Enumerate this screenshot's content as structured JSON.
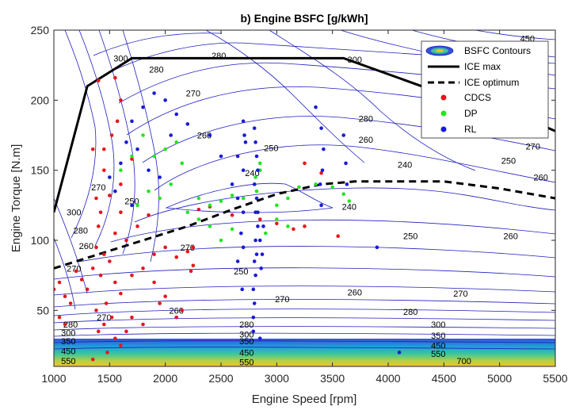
{
  "chart_data": {
    "type": "scatter",
    "title": "b) Engine BSFC [g/kWh]",
    "xlabel": "Engine Speed [rpm]",
    "ylabel": "Engine Torque [N.m]",
    "xlim": [
      1000,
      5500
    ],
    "ylim": [
      10,
      250
    ],
    "xticks": [
      1000,
      1500,
      2000,
      2500,
      3000,
      3500,
      4000,
      4500,
      5000,
      5500
    ],
    "yticks": [
      50,
      100,
      150,
      200,
      250
    ],
    "grid": false,
    "legend_position": "top-right",
    "legend": {
      "contours": "BSFC Contours",
      "ice_max": "ICE max",
      "ice_optimum": "ICE optimum",
      "cdcs": "CDCS",
      "dp": "DP",
      "rl": "RL"
    },
    "colors": {
      "contour": "#1f1fbf",
      "ice_max": "#000000",
      "ice_optimum": "#000000",
      "cdcs": "#e8141e",
      "dp": "#22e622",
      "rl": "#1a1ad6"
    },
    "ice_max": {
      "x": [
        1000,
        1300,
        1700,
        3600,
        4300,
        5000,
        5500
      ],
      "y": [
        120,
        210,
        230,
        230,
        210,
        195,
        178
      ]
    },
    "ice_optimum": {
      "x": [
        1000,
        1400,
        1800,
        2200,
        2600,
        3000,
        3400,
        3700,
        4000,
        4500,
        5000,
        5500
      ],
      "y": [
        80,
        90,
        100,
        110,
        122,
        133,
        140,
        142,
        142,
        142,
        137,
        130
      ]
    },
    "contour_labels": [
      {
        "text": "300",
        "x": 1600,
        "y": 230
      },
      {
        "text": "280",
        "x": 1920,
        "y": 222
      },
      {
        "text": "280",
        "x": 2480,
        "y": 232
      },
      {
        "text": "300",
        "x": 3700,
        "y": 229
      },
      {
        "text": "270",
        "x": 2250,
        "y": 205
      },
      {
        "text": "280",
        "x": 3800,
        "y": 187
      },
      {
        "text": "260",
        "x": 3800,
        "y": 172
      },
      {
        "text": "260",
        "x": 2350,
        "y": 175
      },
      {
        "text": "250",
        "x": 2950,
        "y": 166
      },
      {
        "text": "240",
        "x": 2780,
        "y": 148
      },
      {
        "text": "240",
        "x": 4150,
        "y": 154
      },
      {
        "text": "240",
        "x": 3650,
        "y": 124
      },
      {
        "text": "250",
        "x": 4200,
        "y": 103
      },
      {
        "text": "260",
        "x": 5100,
        "y": 103
      },
      {
        "text": "250",
        "x": 5080,
        "y": 157
      },
      {
        "text": "270",
        "x": 5300,
        "y": 167
      },
      {
        "text": "260",
        "x": 5370,
        "y": 145
      },
      {
        "text": "260",
        "x": 3700,
        "y": 63
      },
      {
        "text": "270",
        "x": 4650,
        "y": 62
      },
      {
        "text": "280",
        "x": 4200,
        "y": 49
      },
      {
        "text": "300",
        "x": 4450,
        "y": 40
      },
      {
        "text": "350",
        "x": 4450,
        "y": 32
      },
      {
        "text": "450",
        "x": 4450,
        "y": 25
      },
      {
        "text": "550",
        "x": 4450,
        "y": 19
      },
      {
        "text": "700",
        "x": 4680,
        "y": 14
      },
      {
        "text": "450",
        "x": 5250,
        "y": 244
      },
      {
        "text": "270",
        "x": 1180,
        "y": 80
      },
      {
        "text": "280",
        "x": 1240,
        "y": 107
      },
      {
        "text": "300",
        "x": 1180,
        "y": 120
      },
      {
        "text": "270",
        "x": 1400,
        "y": 138
      },
      {
        "text": "250",
        "x": 1700,
        "y": 128
      },
      {
        "text": "260",
        "x": 2100,
        "y": 50
      },
      {
        "text": "270",
        "x": 2200,
        "y": 95
      },
      {
        "text": "270",
        "x": 3050,
        "y": 58
      },
      {
        "text": "260",
        "x": 1290,
        "y": 96
      },
      {
        "text": "250",
        "x": 2680,
        "y": 78
      },
      {
        "text": "280",
        "x": 1150,
        "y": 40
      },
      {
        "text": "300",
        "x": 1130,
        "y": 34
      },
      {
        "text": "350",
        "x": 1130,
        "y": 28
      },
      {
        "text": "450",
        "x": 1130,
        "y": 21
      },
      {
        "text": "550",
        "x": 1130,
        "y": 14
      },
      {
        "text": "270",
        "x": 1450,
        "y": 45
      },
      {
        "text": "280",
        "x": 2730,
        "y": 40
      },
      {
        "text": "300",
        "x": 2730,
        "y": 33
      },
      {
        "text": "350",
        "x": 2730,
        "y": 28
      },
      {
        "text": "450",
        "x": 2730,
        "y": 20
      },
      {
        "text": "550",
        "x": 2730,
        "y": 13
      }
    ],
    "cdcs": [
      [
        1400,
        214
      ],
      [
        1550,
        216
      ],
      [
        1350,
        165
      ],
      [
        1700,
        158
      ],
      [
        1450,
        150
      ],
      [
        1500,
        132
      ],
      [
        1600,
        120
      ],
      [
        1400,
        110
      ],
      [
        1380,
        95
      ],
      [
        1450,
        90
      ],
      [
        1500,
        85
      ],
      [
        1350,
        80
      ],
      [
        1420,
        75
      ],
      [
        1550,
        70
      ],
      [
        1600,
        62
      ],
      [
        1470,
        55
      ],
      [
        1380,
        50
      ],
      [
        1520,
        45
      ],
      [
        1450,
        40
      ],
      [
        1400,
        35
      ],
      [
        1550,
        30
      ],
      [
        1600,
        25
      ],
      [
        1480,
        20
      ],
      [
        1350,
        15
      ],
      [
        1300,
        65
      ],
      [
        1250,
        72
      ],
      [
        1200,
        78
      ],
      [
        1700,
        75
      ],
      [
        1800,
        80
      ],
      [
        1900,
        90
      ],
      [
        2000,
        95
      ],
      [
        2100,
        88
      ],
      [
        2200,
        92
      ],
      [
        2250,
        95
      ],
      [
        2250,
        82
      ],
      [
        2230,
        78
      ],
      [
        1900,
        70
      ],
      [
        2000,
        60
      ],
      [
        1950,
        55
      ],
      [
        2100,
        45
      ],
      [
        2150,
        50
      ],
      [
        1700,
        45
      ],
      [
        1800,
        40
      ],
      [
        1650,
        35
      ],
      [
        1050,
        70
      ],
      [
        1000,
        65
      ],
      [
        1100,
        60
      ],
      [
        1150,
        55
      ],
      [
        1050,
        45
      ],
      [
        1100,
        40
      ],
      [
        1750,
        110
      ],
      [
        1850,
        118
      ],
      [
        2300,
        122
      ],
      [
        2400,
        124
      ],
      [
        2600,
        118
      ],
      [
        2850,
        115
      ],
      [
        3000,
        112
      ],
      [
        3150,
        108
      ],
      [
        3250,
        110
      ],
      [
        3550,
        103
      ],
      [
        3400,
        148
      ],
      [
        3250,
        155
      ],
      [
        1450,
        165
      ],
      [
        1520,
        175
      ],
      [
        1570,
        185
      ],
      [
        1600,
        200
      ],
      [
        1420,
        120
      ],
      [
        1380,
        130
      ],
      [
        1600,
        140
      ],
      [
        1650,
        100
      ],
      [
        1550,
        105
      ]
    ],
    "dp": [
      [
        1800,
        175
      ],
      [
        1900,
        160
      ],
      [
        2000,
        165
      ],
      [
        2100,
        170
      ],
      [
        2150,
        155
      ],
      [
        2050,
        140
      ],
      [
        1950,
        130
      ],
      [
        1850,
        135
      ],
      [
        1750,
        125
      ],
      [
        2300,
        115
      ],
      [
        2400,
        110
      ],
      [
        2500,
        100
      ],
      [
        2600,
        108
      ],
      [
        2200,
        120
      ],
      [
        2300,
        130
      ],
      [
        2400,
        125
      ],
      [
        2500,
        128
      ],
      [
        2600,
        132
      ],
      [
        2700,
        130
      ],
      [
        2800,
        140
      ],
      [
        2850,
        150
      ],
      [
        2850,
        155
      ],
      [
        2820,
        135
      ],
      [
        2830,
        120
      ],
      [
        2810,
        145
      ],
      [
        3000,
        125
      ],
      [
        3100,
        130
      ],
      [
        3200,
        138
      ],
      [
        3350,
        140
      ],
      [
        3500,
        138
      ],
      [
        3600,
        133
      ],
      [
        3650,
        128
      ],
      [
        3000,
        115
      ],
      [
        3100,
        110
      ],
      [
        2900,
        105
      ],
      [
        1600,
        150
      ],
      [
        1700,
        160
      ]
    ],
    "rl": [
      [
        1800,
        195
      ],
      [
        1900,
        205
      ],
      [
        2000,
        200
      ],
      [
        1700,
        185
      ],
      [
        1650,
        170
      ],
      [
        1750,
        165
      ],
      [
        1850,
        150
      ],
      [
        1950,
        145
      ],
      [
        2050,
        175
      ],
      [
        2100,
        190
      ],
      [
        2200,
        183
      ],
      [
        1600,
        155
      ],
      [
        1500,
        145
      ],
      [
        1550,
        135
      ],
      [
        1700,
        125
      ],
      [
        2400,
        175
      ],
      [
        2500,
        160
      ],
      [
        2600,
        140
      ],
      [
        2650,
        130
      ],
      [
        2700,
        120
      ],
      [
        2700,
        185
      ],
      [
        2710,
        175
      ],
      [
        2720,
        170
      ],
      [
        2800,
        180
      ],
      [
        2810,
        170
      ],
      [
        2820,
        160
      ],
      [
        2830,
        150
      ],
      [
        2800,
        140
      ],
      [
        2820,
        130
      ],
      [
        2810,
        120
      ],
      [
        2830,
        110
      ],
      [
        2810,
        100
      ],
      [
        2820,
        90
      ],
      [
        2800,
        85
      ],
      [
        2810,
        75
      ],
      [
        2790,
        65
      ],
      [
        2800,
        55
      ],
      [
        2790,
        45
      ],
      [
        2790,
        35
      ],
      [
        2850,
        30
      ],
      [
        2830,
        120
      ],
      [
        2850,
        100
      ],
      [
        2870,
        90
      ],
      [
        2880,
        110
      ],
      [
        2860,
        80
      ],
      [
        2680,
        105
      ],
      [
        2700,
        95
      ],
      [
        2650,
        85
      ],
      [
        2690,
        65
      ],
      [
        3350,
        195
      ],
      [
        3400,
        180
      ],
      [
        3420,
        165
      ],
      [
        3410,
        150
      ],
      [
        3390,
        140
      ],
      [
        3400,
        125
      ],
      [
        3600,
        175
      ],
      [
        3620,
        155
      ],
      [
        3630,
        140
      ],
      [
        3900,
        95
      ],
      [
        4100,
        20
      ],
      [
        2700,
        150
      ],
      [
        2650,
        160
      ]
    ]
  }
}
